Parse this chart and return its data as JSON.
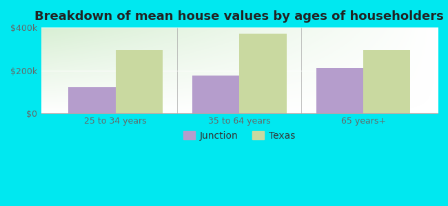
{
  "title": "Breakdown of mean house values by ages of householders",
  "categories": [
    "25 to 34 years",
    "35 to 64 years",
    "65 years+"
  ],
  "junction_values": [
    120000,
    175000,
    210000
  ],
  "texas_values": [
    295000,
    370000,
    295000
  ],
  "junction_color": "#b59dcc",
  "texas_color": "#c9d9a0",
  "background_outer": "#00e8f0",
  "background_inner_color1": "#d8efd4",
  "background_inner_color2": "#ffffff",
  "ylim": [
    0,
    400000
  ],
  "yticks": [
    0,
    200000,
    400000
  ],
  "ytick_labels": [
    "$0",
    "$200k",
    "$400k"
  ],
  "legend_labels": [
    "Junction",
    "Texas"
  ],
  "bar_width": 0.38,
  "title_fontsize": 13,
  "tick_fontsize": 9,
  "legend_fontsize": 10
}
